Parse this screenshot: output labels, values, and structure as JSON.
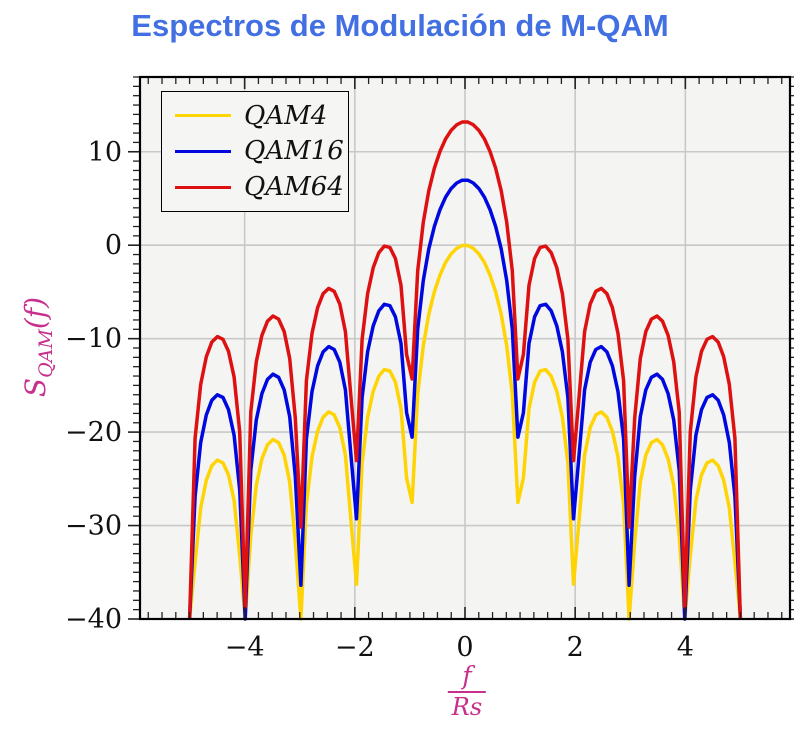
{
  "title": {
    "text": "Espectros de Modulación de M-QAM",
    "color": "#4270E2"
  },
  "axes": {
    "ylabel": {
      "base": "S",
      "sub": "QAM",
      "rest": "(f)",
      "color": "#C7308C"
    },
    "xlabel": {
      "numerator": "f",
      "denominator": "Rs",
      "color": "#C7308C"
    },
    "x_major_ticks": {
      "values": [
        -4,
        -2,
        0,
        2,
        4
      ],
      "labels": [
        "−4",
        "−2",
        "0",
        "2",
        "4"
      ]
    },
    "y_major_ticks": {
      "values": [
        10,
        0,
        -10,
        -20,
        -30,
        -40
      ],
      "labels": [
        "10",
        "0",
        "−10",
        "−20",
        "−30",
        "−40"
      ]
    },
    "x_minor_step": 0.25,
    "y_minor_step": 1
  },
  "legend": {
    "position": "top-left",
    "entries": [
      {
        "label": "QAM4",
        "color": "#FFD405"
      },
      {
        "label": "QAM16",
        "color": "#0008E0"
      },
      {
        "label": "QAM64",
        "color": "#DD1111"
      }
    ]
  },
  "chart_data": {
    "type": "line",
    "title": "Espectros de Modulación de M-QAM",
    "xlabel": "f/Rs",
    "ylabel": "S_QAM(f)",
    "xlim": [
      -5.9,
      5.9
    ],
    "ylim": [
      -40,
      18
    ],
    "grid": true,
    "legend_position": "top-left",
    "x_domain": [
      -5,
      5
    ],
    "n_samples": 100,
    "formula": "S_M(f) = offset_db + 20*log10(|sin(pi*x)/(pi*x)|), x = f/Rs, clipped at -40 dB; nulls at every nonzero integer x",
    "series": [
      {
        "name": "QAM4",
        "M": 4,
        "color": "#FFD405",
        "offset_db": 0,
        "peak_db": 0
      },
      {
        "name": "QAM16",
        "M": 16,
        "color": "#0008E0",
        "offset_db": 6.99,
        "peak_db": 7
      },
      {
        "name": "QAM64",
        "M": 64,
        "color": "#DD1111",
        "offset_db": 13.22,
        "peak_db": 13.2
      }
    ],
    "sidelobe_peaks_rel_db": {
      "x=1.43": -13.3,
      "x=2.46": -17.8,
      "x=3.47": -20.8,
      "x=4.48": -23.0
    }
  },
  "style_colors": {
    "grid": "#C8C8C8",
    "plot_bg": "#F4F4F2",
    "axis_box": "#000000",
    "tick_text": "#111111"
  }
}
